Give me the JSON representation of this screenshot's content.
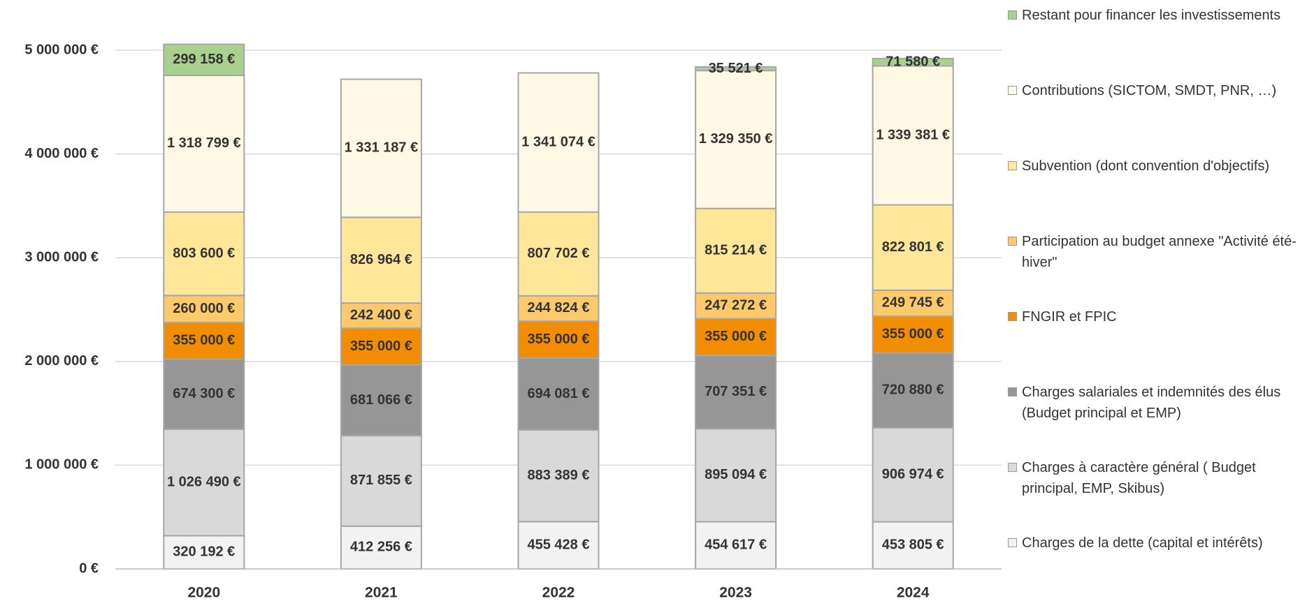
{
  "chart_data": {
    "type": "stacked_bar",
    "categories": [
      "2020",
      "2021",
      "2022",
      "2023",
      "2024"
    ],
    "ylim": [
      0,
      5000000
    ],
    "yticks": [
      {
        "value": 0,
        "label": "0 €"
      },
      {
        "value": 1000000,
        "label": "1 000 000 €"
      },
      {
        "value": 2000000,
        "label": "2 000 000 €"
      },
      {
        "value": 3000000,
        "label": "3 000 000 €"
      },
      {
        "value": 4000000,
        "label": "4 000 000 €"
      },
      {
        "value": 5000000,
        "label": "5 000 000 €"
      }
    ],
    "grid": true,
    "legend": "right",
    "series": [
      {
        "name": "Charges de la dette (capital et intérêts)",
        "color": "#f2f2f2",
        "values": [
          320192,
          412256,
          455428,
          454617,
          453805
        ],
        "value_labels": [
          "320 192 €",
          "412 256 €",
          "455 428 €",
          "454 617 €",
          "453 805 €"
        ]
      },
      {
        "name": "Charges à caractère général ( Budget principal, EMP, Skibus)",
        "color": "#d9d9d9",
        "values": [
          1026490,
          871855,
          883389,
          895094,
          906974
        ],
        "value_labels": [
          "1 026 490 €",
          "871 855 €",
          "883 389 €",
          "895 094 €",
          "906 974 €"
        ]
      },
      {
        "name": "Charges salariales et indemnités des élus (Budget principal et EMP)",
        "color": "#969696",
        "values": [
          674300,
          681066,
          694081,
          707351,
          720880
        ],
        "value_labels": [
          "674 300 €",
          "681 066 €",
          "694 081 €",
          "707 351 €",
          "720 880 €"
        ]
      },
      {
        "name": "FNGIR et FPIC",
        "color": "#f28c00",
        "values": [
          355000,
          355000,
          355000,
          355000,
          355000
        ],
        "value_labels": [
          "355 000 €",
          "355 000 €",
          "355 000 €",
          "355 000 €",
          "355 000 €"
        ]
      },
      {
        "name": "Participation au budget annexe \"Activité été-hiver\"",
        "color": "#fdc96a",
        "values": [
          260000,
          242400,
          244824,
          247272,
          249745
        ],
        "value_labels": [
          "260 000 €",
          "242 400 €",
          "244 824 €",
          "247 272 €",
          "249 745 €"
        ]
      },
      {
        "name": "Subvention (dont convention d'objectifs)",
        "color": "#ffe699",
        "values": [
          803600,
          826964,
          807702,
          815214,
          822801
        ],
        "value_labels": [
          "803 600 €",
          "826 964 €",
          "807 702 €",
          "815 214 €",
          "822 801 €"
        ]
      },
      {
        "name": "Contributions (SICTOM, SMDT, PNR, …)",
        "color": "#fff8e5",
        "values": [
          1318799,
          1331187,
          1341074,
          1329350,
          1339381
        ],
        "value_labels": [
          "1 318 799 €",
          "1 331 187 €",
          "1 341 074 €",
          "1 329 350 €",
          "1 339 381 €"
        ]
      },
      {
        "name": "Restant pour financer les investissements",
        "color": "#a9d18e",
        "values": [
          299158,
          null,
          null,
          35521,
          71580
        ],
        "value_labels": [
          "299 158 €",
          null,
          null,
          "35 521 €",
          "71 580 €"
        ]
      }
    ]
  }
}
